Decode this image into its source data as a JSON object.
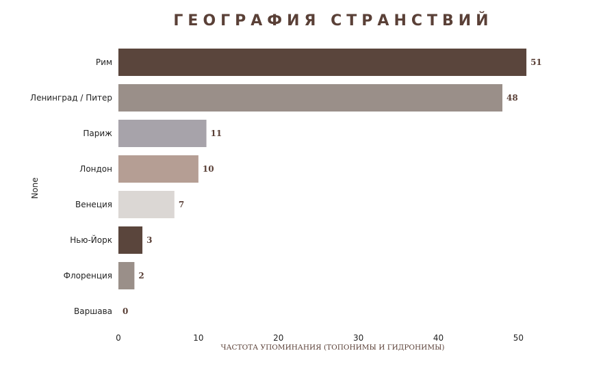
{
  "colors": {
    "title": "#5a4037",
    "value_label": "#5a4037",
    "text": "#222222",
    "palette": [
      "#5a453c",
      "#9a8f89",
      "#a7a3aa",
      "#b59e94",
      "#dbd7d4",
      "#5a453c",
      "#9a8f89",
      "#a7a3aa"
    ]
  },
  "chart_data": {
    "type": "bar",
    "orientation": "horizontal",
    "title": "ГЕОГРАФИЯ СТРАНСТВИЙ",
    "xlabel": "ЧАСТОТА УПОМИНАНИЯ (ТОПОНИМЫ И ГИДРОНИМЫ)",
    "ylabel": "None",
    "categories": [
      "Рим",
      "Ленинград / Питер",
      "Париж",
      "Лондон",
      "Венеция",
      "Нью-Йорк",
      "Флоренция",
      "Варшава"
    ],
    "values": [
      51,
      48,
      11,
      10,
      7,
      3,
      2,
      0
    ],
    "xlim": [
      0,
      54.5
    ],
    "xticks": [
      0,
      10,
      20,
      30,
      40,
      50
    ],
    "grid": false,
    "legend": "none"
  }
}
